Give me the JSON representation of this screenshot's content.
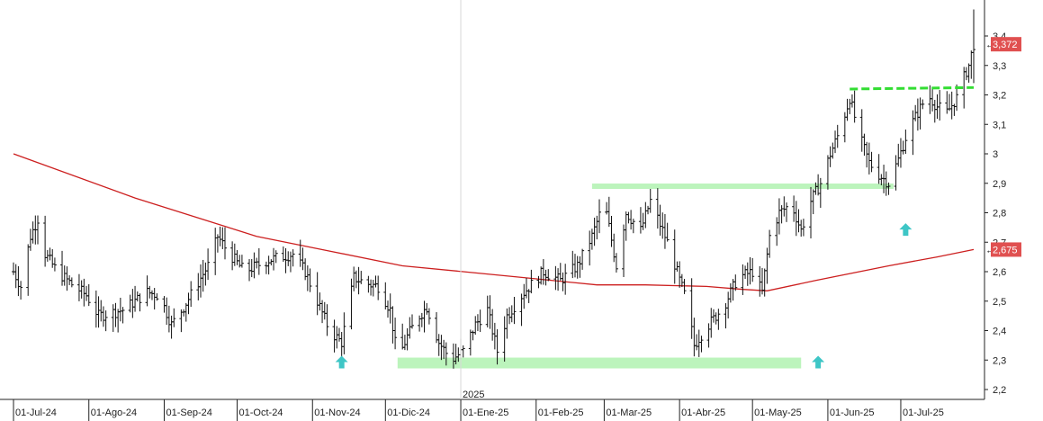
{
  "chart_data": {
    "type": "bar",
    "subtype": "ohlc-price-bars",
    "title": "",
    "xlabel": "",
    "ylabel": "",
    "ylim": [
      2.17,
      3.52
    ],
    "grid": false,
    "y_axis_position": "right",
    "y_ticks": [
      "3,4",
      "3,3",
      "3,2",
      "3,1",
      "3",
      "2,9",
      "2,8",
      "2,7",
      "2,6",
      "2,5",
      "2,4",
      "2,3",
      "2,2"
    ],
    "y_tick_values": [
      3.4,
      3.3,
      3.2,
      3.1,
      3.0,
      2.9,
      2.8,
      2.7,
      2.6,
      2.5,
      2.4,
      2.3,
      2.2
    ],
    "x_ticks": [
      "01-Jul-24",
      "01-Ago-24",
      "01-Sep-24",
      "01-Oct-24",
      "01-Nov-24",
      "01-Dic-24",
      "01-Ene-25",
      "01-Feb-25",
      "01-Mar-25",
      "01-Abr-25",
      "01-May-25",
      "01-Jun-25",
      "01-Jul-25"
    ],
    "x_tick_days": [
      0,
      31,
      62,
      92,
      123,
      153,
      184,
      215,
      243,
      274,
      304,
      335,
      365
    ],
    "year_marker": {
      "label": "2025",
      "day": 184
    },
    "last_day": 395,
    "price_key_points": [
      {
        "day": 0,
        "close": 2.6
      },
      {
        "day": 3,
        "close": 2.55
      },
      {
        "day": 7,
        "close": 2.72
      },
      {
        "day": 10,
        "close": 2.78
      },
      {
        "day": 13,
        "close": 2.66
      },
      {
        "day": 18,
        "close": 2.6
      },
      {
        "day": 25,
        "close": 2.55
      },
      {
        "day": 30,
        "close": 2.52
      },
      {
        "day": 35,
        "close": 2.45
      },
      {
        "day": 45,
        "close": 2.47
      },
      {
        "day": 55,
        "close": 2.53
      },
      {
        "day": 60,
        "close": 2.52
      },
      {
        "day": 65,
        "close": 2.42
      },
      {
        "day": 70,
        "close": 2.48
      },
      {
        "day": 75,
        "close": 2.55
      },
      {
        "day": 80,
        "close": 2.62
      },
      {
        "day": 84,
        "close": 2.72
      },
      {
        "day": 88,
        "close": 2.67
      },
      {
        "day": 95,
        "close": 2.6
      },
      {
        "day": 105,
        "close": 2.64
      },
      {
        "day": 115,
        "close": 2.66
      },
      {
        "day": 120,
        "close": 2.6
      },
      {
        "day": 125,
        "close": 2.5
      },
      {
        "day": 130,
        "close": 2.4
      },
      {
        "day": 135,
        "close": 2.36
      },
      {
        "day": 140,
        "close": 2.58
      },
      {
        "day": 145,
        "close": 2.56
      },
      {
        "day": 150,
        "close": 2.55
      },
      {
        "day": 155,
        "close": 2.47
      },
      {
        "day": 158,
        "close": 2.3
      },
      {
        "day": 162,
        "close": 2.38
      },
      {
        "day": 166,
        "close": 2.44
      },
      {
        "day": 170,
        "close": 2.48
      },
      {
        "day": 175,
        "close": 2.36
      },
      {
        "day": 180,
        "close": 2.3
      },
      {
        "day": 185,
        "close": 2.33
      },
      {
        "day": 190,
        "close": 2.42
      },
      {
        "day": 195,
        "close": 2.47
      },
      {
        "day": 199,
        "close": 2.33
      },
      {
        "day": 203,
        "close": 2.45
      },
      {
        "day": 210,
        "close": 2.53
      },
      {
        "day": 218,
        "close": 2.6
      },
      {
        "day": 225,
        "close": 2.57
      },
      {
        "day": 232,
        "close": 2.62
      },
      {
        "day": 238,
        "close": 2.72
      },
      {
        "day": 243,
        "close": 2.84
      },
      {
        "day": 248,
        "close": 2.62
      },
      {
        "day": 252,
        "close": 2.8
      },
      {
        "day": 258,
        "close": 2.74
      },
      {
        "day": 262,
        "close": 2.84
      },
      {
        "day": 266,
        "close": 2.76
      },
      {
        "day": 270,
        "close": 2.68
      },
      {
        "day": 274,
        "close": 2.57
      },
      {
        "day": 277,
        "close": 2.5
      },
      {
        "day": 280,
        "close": 2.35
      },
      {
        "day": 284,
        "close": 2.4
      },
      {
        "day": 288,
        "close": 2.44
      },
      {
        "day": 292,
        "close": 2.48
      },
      {
        "day": 298,
        "close": 2.58
      },
      {
        "day": 304,
        "close": 2.6
      },
      {
        "day": 308,
        "close": 2.53
      },
      {
        "day": 311,
        "close": 2.72
      },
      {
        "day": 315,
        "close": 2.8
      },
      {
        "day": 320,
        "close": 2.83
      },
      {
        "day": 324,
        "close": 2.74
      },
      {
        "day": 328,
        "close": 2.84
      },
      {
        "day": 332,
        "close": 2.9
      },
      {
        "day": 336,
        "close": 3.0
      },
      {
        "day": 340,
        "close": 3.08
      },
      {
        "day": 344,
        "close": 3.19
      },
      {
        "day": 348,
        "close": 3.06
      },
      {
        "day": 352,
        "close": 2.97
      },
      {
        "day": 356,
        "close": 2.93
      },
      {
        "day": 360,
        "close": 2.9
      },
      {
        "day": 364,
        "close": 2.98
      },
      {
        "day": 368,
        "close": 3.08
      },
      {
        "day": 372,
        "close": 3.14
      },
      {
        "day": 376,
        "close": 3.2
      },
      {
        "day": 380,
        "close": 3.16
      },
      {
        "day": 384,
        "close": 3.14
      },
      {
        "day": 388,
        "close": 3.19
      },
      {
        "day": 391,
        "close": 3.26
      },
      {
        "day": 393,
        "close": 3.3
      },
      {
        "day": 395,
        "close": 3.372
      }
    ],
    "moving_average": {
      "color": "#cc1f1f",
      "points": [
        {
          "day": 0,
          "value": 3.0
        },
        {
          "day": 50,
          "value": 2.85
        },
        {
          "day": 100,
          "value": 2.72
        },
        {
          "day": 130,
          "value": 2.67
        },
        {
          "day": 160,
          "value": 2.62
        },
        {
          "day": 185,
          "value": 2.6
        },
        {
          "day": 210,
          "value": 2.58
        },
        {
          "day": 240,
          "value": 2.555
        },
        {
          "day": 260,
          "value": 2.555
        },
        {
          "day": 285,
          "value": 2.55
        },
        {
          "day": 300,
          "value": 2.54
        },
        {
          "day": 310,
          "value": 2.535
        },
        {
          "day": 330,
          "value": 2.57
        },
        {
          "day": 360,
          "value": 2.62
        },
        {
          "day": 380,
          "value": 2.65
        },
        {
          "day": 395,
          "value": 2.675
        }
      ]
    },
    "last_price": {
      "value": 3.372,
      "label": "3,372",
      "color": "#e05050"
    },
    "ma_value": {
      "value": 2.675,
      "label": "2,675",
      "color": "#e05050"
    },
    "support_zones": [
      {
        "day_from": 158,
        "day_to": 324,
        "value": 2.29,
        "color": "#a6f0a6"
      },
      {
        "day_from": 238,
        "day_to": 362,
        "value": 2.89,
        "color": "#a6f0a6"
      }
    ],
    "resistance_line": {
      "day_from": 344,
      "day_to": 395,
      "value_from": 3.22,
      "value_to": 3.225,
      "color": "#33dd33"
    },
    "signal_arrows": [
      {
        "day": 135,
        "value": 2.29,
        "color": "#3ec6c6"
      },
      {
        "day": 331,
        "value": 2.29,
        "color": "#3ec6c6"
      },
      {
        "day": 367,
        "value": 2.74,
        "color": "#3ec6c6"
      }
    ],
    "colors": {
      "price_bars": "#111111",
      "axis": "#222222"
    }
  }
}
